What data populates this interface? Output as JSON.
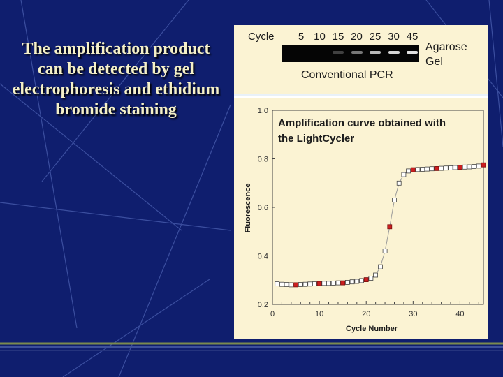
{
  "slide": {
    "text": "The amplification product can be detected by gel electrophoresis and ethidium bromide staining"
  },
  "figure": {
    "gel": {
      "cycle_label": "Cycle",
      "cycles": [
        "5",
        "10",
        "15",
        "20",
        "25",
        "30",
        "45"
      ],
      "band_intensity": [
        0,
        0,
        0.05,
        0.35,
        0.7,
        0.85,
        0.9
      ],
      "method_label": "Conventional PCR",
      "agarose_label_1": "Agarose",
      "agarose_label_2": "Gel"
    }
  },
  "chart_data": {
    "type": "scatter",
    "title_line1": "Amplification curve obtained with",
    "title_line2": "the LightCycler",
    "xlabel": "Cycle Number",
    "ylabel": "Fluorescence",
    "xlim": [
      0,
      45
    ],
    "ylim": [
      0.2,
      1.0
    ],
    "x_ticks": [
      "0",
      "10",
      "20",
      "30",
      "40"
    ],
    "y_ticks": [
      "0.2",
      "0.4",
      "0.6",
      "0.8",
      "1.0"
    ],
    "marker_colors": {
      "open": "#ffffff",
      "highlight": "#cc1f1f",
      "line": "#999999"
    },
    "x": [
      1,
      2,
      3,
      4,
      5,
      6,
      7,
      8,
      9,
      10,
      11,
      12,
      13,
      14,
      15,
      16,
      17,
      18,
      19,
      20,
      21,
      22,
      23,
      24,
      25,
      26,
      27,
      28,
      29,
      30,
      31,
      32,
      33,
      34,
      35,
      36,
      37,
      38,
      39,
      40,
      41,
      42,
      43,
      44,
      45
    ],
    "y": [
      0.285,
      0.283,
      0.282,
      0.281,
      0.281,
      0.282,
      0.283,
      0.284,
      0.285,
      0.286,
      0.287,
      0.287,
      0.288,
      0.289,
      0.289,
      0.291,
      0.293,
      0.295,
      0.298,
      0.302,
      0.308,
      0.321,
      0.355,
      0.42,
      0.52,
      0.63,
      0.7,
      0.735,
      0.75,
      0.755,
      0.756,
      0.757,
      0.758,
      0.759,
      0.76,
      0.761,
      0.762,
      0.763,
      0.764,
      0.765,
      0.766,
      0.767,
      0.768,
      0.77,
      0.775
    ],
    "highlight_x": [
      5,
      10,
      15,
      20,
      25,
      30,
      35,
      40,
      45
    ]
  }
}
